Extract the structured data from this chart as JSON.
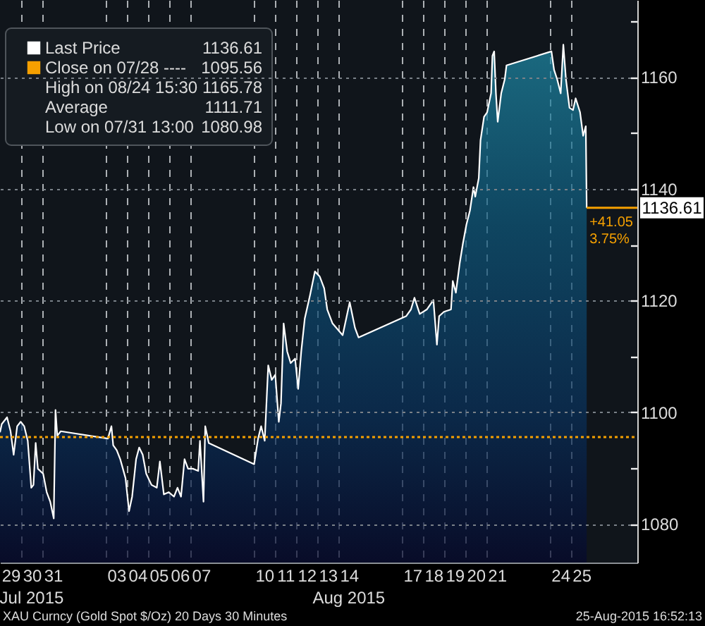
{
  "chart_data": {
    "type": "area",
    "series": [
      {
        "name": "Last Price",
        "color": "#ffffff",
        "x": [
          "2015-07-29T00:00",
          "2015-07-29T02:00",
          "2015-07-29T08:00",
          "2015-07-29T12:00",
          "2015-07-29T15:30",
          "2015-07-29T19:30",
          "2015-07-29T23:30",
          "2015-07-30T03:30",
          "2015-07-30T07:30",
          "2015-07-30T11:30",
          "2015-07-30T14:00",
          "2015-07-30T16:30",
          "2015-07-30T19:00",
          "2015-07-31T01:00",
          "2015-07-31T05:00",
          "2015-07-31T09:00",
          "2015-07-31T13:00",
          "2015-07-31T15:00",
          "2015-07-31T17:00",
          "2015-07-31T21:00",
          "2015-08-03T02:30",
          "2015-08-03T06:30",
          "2015-08-03T08:30",
          "2015-08-03T12:30",
          "2015-08-03T16:30",
          "2015-08-03T22:30",
          "2015-08-04T02:30",
          "2015-08-04T06:00",
          "2015-08-04T10:30",
          "2015-08-04T14:00",
          "2015-08-04T18:00",
          "2015-08-04T22:00",
          "2015-08-05T04:00",
          "2015-08-05T10:00",
          "2015-08-05T13:30",
          "2015-08-05T18:00",
          "2015-08-05T23:30",
          "2015-08-06T05:30",
          "2015-08-06T09:30",
          "2015-08-06T13:30",
          "2015-08-06T17:30",
          "2015-08-06T21:30",
          "2015-08-07T03:00",
          "2015-08-07T09:00",
          "2015-08-07T11:00",
          "2015-08-07T15:00",
          "2015-08-07T17:00",
          "2015-08-07T21:00",
          "2015-08-10T00:30",
          "2015-08-10T05:00",
          "2015-08-10T08:30",
          "2015-08-10T12:30",
          "2015-08-10T16:30",
          "2015-08-10T20:30",
          "2015-08-11T00:30",
          "2015-08-11T04:30",
          "2015-08-11T07:00",
          "2015-08-11T10:00",
          "2015-08-11T14:00",
          "2015-08-11T18:00",
          "2015-08-11T23:00",
          "2015-08-12T02:30",
          "2015-08-12T06:00",
          "2015-08-12T10:00",
          "2015-08-12T16:00",
          "2015-08-12T21:30",
          "2015-08-13T03:00",
          "2015-08-13T08:00",
          "2015-08-13T11:30",
          "2015-08-13T17:30",
          "2015-08-14T05:00",
          "2015-08-14T13:00",
          "2015-08-14T19:00",
          "2015-08-14T23:00",
          "2015-08-17T05:00",
          "2015-08-17T10:30",
          "2015-08-17T14:30",
          "2015-08-17T20:30",
          "2015-08-18T04:30",
          "2015-08-18T12:00",
          "2015-08-18T16:00",
          "2015-08-18T18:30",
          "2015-08-19T00:00",
          "2015-08-19T08:00",
          "2015-08-19T10:00",
          "2015-08-19T13:30",
          "2015-08-19T18:00",
          "2015-08-19T21:30",
          "2015-08-20T01:30",
          "2015-08-20T05:30",
          "2015-08-20T09:30",
          "2015-08-20T11:30",
          "2015-08-20T15:30",
          "2015-08-20T17:30",
          "2015-08-20T21:30",
          "2015-08-21T01:00",
          "2015-08-21T05:30",
          "2015-08-21T07:00",
          "2015-08-21T09:00",
          "2015-08-21T11:00",
          "2015-08-21T13:00",
          "2015-08-21T17:00",
          "2015-08-21T21:00",
          "2015-08-21T23:00",
          "2015-08-24T02:00",
          "2015-08-24T05:00",
          "2015-08-24T08:30",
          "2015-08-24T12:30",
          "2015-08-24T15:30",
          "2015-08-24T18:30",
          "2015-08-24T22:30",
          "2015-08-25T02:30",
          "2015-08-25T05:30",
          "2015-08-25T10:30",
          "2015-08-25T14:00",
          "2015-08-25T17:00",
          "2015-08-25T18:00"
        ],
        "values": [
          1096.4,
          1097.9,
          1099.1,
          1096.6,
          1092.4,
          1097.5,
          1098.3,
          1097.5,
          1094.9,
          1086.5,
          1087.0,
          1094.5,
          1089.9,
          1089.0,
          1085.7,
          1084.0,
          1081.0,
          1100.4,
          1095.8,
          1096.6,
          1095.3,
          1097.5,
          1094.1,
          1093.2,
          1091.6,
          1088.2,
          1082.3,
          1084.9,
          1091.6,
          1093.7,
          1092.4,
          1089.0,
          1087.0,
          1086.5,
          1091.2,
          1085.3,
          1085.7,
          1084.9,
          1086.5,
          1084.9,
          1091.6,
          1089.9,
          1089.9,
          1089.5,
          1094.9,
          1084.0,
          1097.5,
          1094.5,
          1090.7,
          1095.3,
          1097.5,
          1094.9,
          1108.4,
          1105.8,
          1106.7,
          1098.3,
          1101.6,
          1115.9,
          1110.9,
          1108.8,
          1109.6,
          1104.2,
          1110.9,
          1116.8,
          1121.0,
          1125.2,
          1124.3,
          1122.2,
          1118.4,
          1115.9,
          1113.8,
          1119.7,
          1115.1,
          1113.4,
          1117.2,
          1118.4,
          1120.5,
          1117.6,
          1118.4,
          1120.1,
          1112.1,
          1117.2,
          1118.0,
          1118.4,
          1123.5,
          1121.4,
          1126.8,
          1130.2,
          1133.6,
          1136.1,
          1140.3,
          1138.6,
          1141.9,
          1148.7,
          1152.9,
          1153.7,
          1157.1,
          1163.8,
          1164.6,
          1157.1,
          1152.0,
          1157.1,
          1159.6,
          1162.1,
          1164.6,
          1161.3,
          1159.6,
          1157.1,
          1165.8,
          1159.6,
          1154.5,
          1154.1,
          1156.2,
          1153.7,
          1149.5,
          1151.2,
          1136.61
        ]
      }
    ],
    "xlim": [
      "2015-07-29T00:00",
      "2015-08-28T03:30"
    ],
    "xticks": [
      {
        "value": "2015-07-29T12:00",
        "label": "29"
      },
      {
        "value": "2015-07-30T12:00",
        "label": "30"
      },
      {
        "value": "2015-07-31T12:00",
        "label": "31"
      },
      {
        "value": "2015-08-03T12:00",
        "label": "03"
      },
      {
        "value": "2015-08-04T12:00",
        "label": "04"
      },
      {
        "value": "2015-08-05T12:00",
        "label": "05"
      },
      {
        "value": "2015-08-06T12:00",
        "label": "06"
      },
      {
        "value": "2015-08-07T12:00",
        "label": "07"
      },
      {
        "value": "2015-08-10T12:00",
        "label": "10"
      },
      {
        "value": "2015-08-11T12:00",
        "label": "11"
      },
      {
        "value": "2015-08-12T12:00",
        "label": "12"
      },
      {
        "value": "2015-08-13T12:00",
        "label": "13"
      },
      {
        "value": "2015-08-14T12:00",
        "label": "14"
      },
      {
        "value": "2015-08-17T12:00",
        "label": "17"
      },
      {
        "value": "2015-08-18T12:00",
        "label": "18"
      },
      {
        "value": "2015-08-19T12:00",
        "label": "19"
      },
      {
        "value": "2015-08-20T12:00",
        "label": "20"
      },
      {
        "value": "2015-08-21T12:00",
        "label": "21"
      },
      {
        "value": "2015-08-24T12:00",
        "label": "24"
      },
      {
        "value": "2015-08-25T12:00",
        "label": "25"
      },
      {
        "value": "2015-07-30",
        "label": null
      },
      {
        "value": "2015-07-31",
        "label": null
      },
      {
        "value": "2015-08-03",
        "label": null
      },
      {
        "value": "2015-08-04",
        "label": null
      },
      {
        "value": "2015-08-05",
        "label": null
      },
      {
        "value": "2015-08-06",
        "label": null
      },
      {
        "value": "2015-08-07",
        "label": null
      },
      {
        "value": "2015-08-10",
        "label": null
      },
      {
        "value": "2015-08-11",
        "label": null
      },
      {
        "value": "2015-08-12",
        "label": null
      },
      {
        "value": "2015-08-13",
        "label": null
      },
      {
        "value": "2015-08-14",
        "label": null
      },
      {
        "value": "2015-08-17",
        "label": null
      },
      {
        "value": "2015-08-18",
        "label": null
      },
      {
        "value": "2015-08-19",
        "label": null
      },
      {
        "value": "2015-08-20",
        "label": null
      },
      {
        "value": "2015-08-21",
        "label": null
      },
      {
        "value": "2015-08-24",
        "label": null
      },
      {
        "value": "2015-08-25",
        "label": null
      }
    ],
    "ylim": [
      1073.1,
      1173.8
    ],
    "yticks": [
      1080,
      1100,
      1120,
      1140,
      1160,
      {
        "value": 1090,
        "label": null
      },
      {
        "value": 1110,
        "label": null
      },
      {
        "value": 1130,
        "label": null
      },
      {
        "value": 1150,
        "label": null
      },
      {
        "value": 1170,
        "label": null
      }
    ],
    "grid": true,
    "legend": "top left",
    "ref_lines": [
      {
        "axis": "y",
        "value": 1095.56,
        "label": "Close on 07/28 ----",
        "color": "#f5a000",
        "line_style": "dotted"
      },
      {
        "axis": "y",
        "value": 1136.61,
        "label": "1136.61",
        "color": "#f5a000",
        "line_style": "solid"
      }
    ],
    "annotations": [
      "1136.61",
      "1095.56",
      "High on 08/24 15:30",
      "1165.78",
      "Average",
      "1111.71",
      "Low on 07/31 13:00",
      "1080.98",
      {
        "text": "+41.05",
        "x": "2015-08-25T18:00",
        "y": 1136.61
      },
      {
        "text": "3.75%",
        "x": "2015-08-25T18:00",
        "y": 1136.61
      },
      "Jul 2015",
      "Aug 2015",
      "XAU Curncy (Gold Spot  $/Oz) 20 Days 30 Minutes",
      "25-Aug-2015 16:52:13"
    ]
  }
}
